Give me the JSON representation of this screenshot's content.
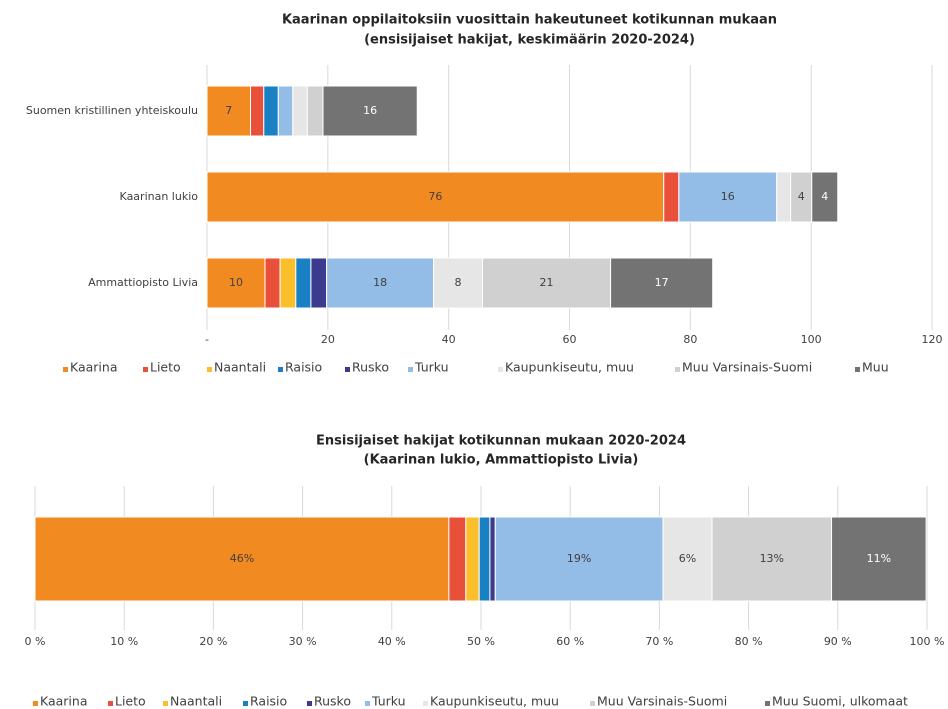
{
  "chart_data": [
    {
      "type": "bar",
      "orientation": "horizontal",
      "stacked": true,
      "title": "Kaarinan oppilaitoksiin vuosittain hakeutuneet kotikunnan mukaan",
      "subtitle": "(ensisijaiset hakijat, keskimäärin 2020-2024)",
      "categories": [
        "Suomen kristillinen yhteiskoulu",
        "Kaarinan lukio",
        "Ammattiopisto Livia"
      ],
      "xlim": [
        0,
        120
      ],
      "xticks": [
        {
          "value": 0,
          "label": "-"
        },
        20,
        40,
        60,
        80,
        100,
        120
      ],
      "grid": true,
      "legend": "bottom",
      "series": [
        {
          "name": "Kaarina",
          "color": "#f28a22",
          "values": [
            7.2,
            75.6,
            9.6
          ],
          "value_labels": [
            "7",
            "76",
            "10"
          ]
        },
        {
          "name": "Lieto",
          "color": "#e8503a",
          "values": [
            2.2,
            2.5,
            2.5
          ],
          "value_labels": [
            null,
            null,
            null
          ]
        },
        {
          "name": "Naantali",
          "color": "#fbbf2c",
          "values": [
            0,
            0,
            2.6
          ],
          "value_labels": [
            null,
            null,
            null
          ]
        },
        {
          "name": "Raisio",
          "color": "#1a80c4",
          "values": [
            2.4,
            0,
            2.5
          ],
          "value_labels": [
            null,
            null,
            null
          ]
        },
        {
          "name": "Rusko",
          "color": "#3b3a8f",
          "values": [
            0,
            0,
            2.6
          ],
          "value_labels": [
            null,
            null,
            null
          ]
        },
        {
          "name": "Turku",
          "color": "#93bde6",
          "values": [
            2.4,
            16.2,
            17.7
          ],
          "value_labels": [
            null,
            "16",
            "18"
          ]
        },
        {
          "name": "Kaupunkiseutu, muu",
          "color": "#e6e6e6",
          "values": [
            2.4,
            2.3,
            8.1
          ],
          "value_labels": [
            null,
            null,
            "8"
          ]
        },
        {
          "name": "Muu Varsinais-Suomi",
          "color": "#d0d0d0",
          "values": [
            2.6,
            3.5,
            21.2
          ],
          "value_labels": [
            null,
            "4",
            "21"
          ]
        },
        {
          "name": "Muu",
          "color": "#737373",
          "values": [
            15.6,
            4.3,
            16.9
          ],
          "value_labels": [
            "16",
            "4",
            "17"
          ]
        }
      ]
    },
    {
      "type": "bar",
      "orientation": "horizontal",
      "stacked": true,
      "title": "Ensisijaiset hakijat kotikunnan mukaan 2020-2024",
      "subtitle": "(Kaarinan lukio, Ammattiopisto Livia)",
      "categories": [
        null
      ],
      "xlim": [
        0,
        100
      ],
      "xticks": [
        {
          "value": 0,
          "label": "0 %"
        },
        {
          "value": 10,
          "label": "10 %"
        },
        {
          "value": 20,
          "label": "20 %"
        },
        {
          "value": 30,
          "label": "30 %"
        },
        {
          "value": 40,
          "label": "40 %"
        },
        {
          "value": 50,
          "label": "50 %"
        },
        {
          "value": 60,
          "label": "60 %"
        },
        {
          "value": 70,
          "label": "70 %"
        },
        {
          "value": 80,
          "label": "80 %"
        },
        {
          "value": 90,
          "label": "90 %"
        },
        {
          "value": 100,
          "label": "100 %"
        }
      ],
      "grid": true,
      "legend": "bottom",
      "series": [
        {
          "name": "Kaarina",
          "color": "#f28a22",
          "values": [
            46.4
          ],
          "value_labels": [
            "46%"
          ]
        },
        {
          "name": "Lieto",
          "color": "#e8503a",
          "values": [
            1.9
          ],
          "value_labels": [
            null
          ]
        },
        {
          "name": "Naantali",
          "color": "#fbbf2c",
          "values": [
            1.5
          ],
          "value_labels": [
            null
          ]
        },
        {
          "name": "Raisio",
          "color": "#1a80c4",
          "values": [
            1.2
          ],
          "value_labels": [
            null
          ]
        },
        {
          "name": "Rusko",
          "color": "#3b3a8f",
          "values": [
            0.6
          ],
          "value_labels": [
            null
          ]
        },
        {
          "name": "Turku",
          "color": "#93bde6",
          "values": [
            18.8
          ],
          "value_labels": [
            "19%"
          ]
        },
        {
          "name": "Kaupunkiseutu, muu",
          "color": "#e6e6e6",
          "values": [
            5.5
          ],
          "value_labels": [
            "6%"
          ]
        },
        {
          "name": "Muu Varsinais-Suomi",
          "color": "#d0d0d0",
          "values": [
            13.4
          ],
          "value_labels": [
            "13%"
          ]
        },
        {
          "name": "Muu Suomi, ulkomaat",
          "color": "#737373",
          "values": [
            10.6
          ],
          "value_labels": [
            "11%"
          ]
        }
      ]
    }
  ]
}
